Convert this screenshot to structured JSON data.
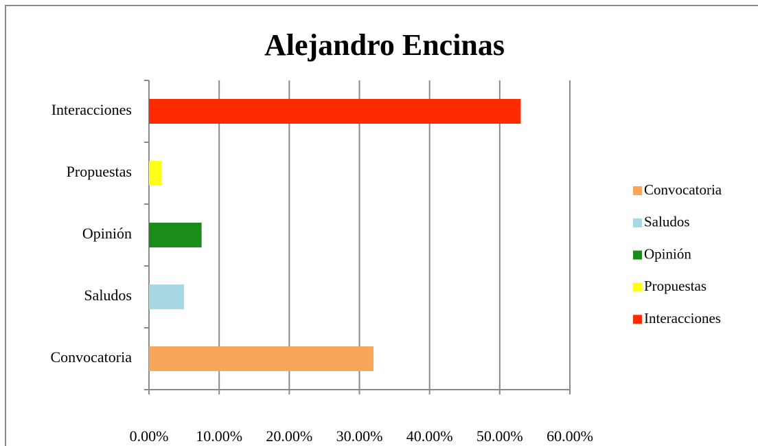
{
  "chart_data": {
    "type": "bar",
    "orientation": "horizontal",
    "title": "Alejandro Encinas",
    "categories": [
      "Convocatoria",
      "Saludos",
      "Opinión",
      "Propuestas",
      "Interacciones"
    ],
    "values": [
      32,
      5,
      7.5,
      1.8,
      53
    ],
    "colors": [
      "#f9a55a",
      "#a8d8e4",
      "#1a8c1a",
      "#ffff1a",
      "#ff2a00"
    ],
    "xlim": [
      0,
      60
    ],
    "xticks": [
      {
        "value": 0,
        "label": "0.00%"
      },
      {
        "value": 10,
        "label": "10.00%"
      },
      {
        "value": 20,
        "label": "20.00%"
      },
      {
        "value": 30,
        "label": "30.00%"
      },
      {
        "value": 40,
        "label": "40.00%"
      },
      {
        "value": 50,
        "label": "50.00%"
      },
      {
        "value": 60,
        "label": "60.00%"
      }
    ],
    "grid": true,
    "legend": "right"
  }
}
